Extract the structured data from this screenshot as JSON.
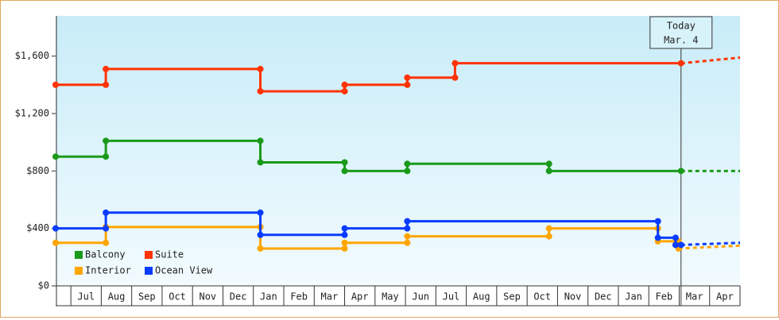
{
  "chart_data": {
    "type": "step-line",
    "xlim": [
      -0.5,
      22
    ],
    "ylim": [
      0,
      1880
    ],
    "xticks": [
      {
        "value": 0.5,
        "label": "Jul"
      },
      {
        "value": 1.5,
        "label": "Aug"
      },
      {
        "value": 2.5,
        "label": "Sep"
      },
      {
        "value": 3.5,
        "label": "Oct"
      },
      {
        "value": 4.5,
        "label": "Nov"
      },
      {
        "value": 5.5,
        "label": "Dec"
      },
      {
        "value": 6.5,
        "label": "Jan"
      },
      {
        "value": 7.5,
        "label": "Feb"
      },
      {
        "value": 8.5,
        "label": "Mar"
      },
      {
        "value": 9.5,
        "label": "Apr"
      },
      {
        "value": 10.5,
        "label": "May"
      },
      {
        "value": 11.5,
        "label": "Jun"
      },
      {
        "value": 12.5,
        "label": "Jul"
      },
      {
        "value": 13.5,
        "label": "Aug"
      },
      {
        "value": 14.5,
        "label": "Sep"
      },
      {
        "value": 15.5,
        "label": "Oct"
      },
      {
        "value": 16.5,
        "label": "Nov"
      },
      {
        "value": 17.5,
        "label": "Dec"
      },
      {
        "value": 18.5,
        "label": "Jan"
      },
      {
        "value": 19.5,
        "label": "Feb"
      },
      {
        "value": 20.5,
        "label": "Mar"
      },
      {
        "value": 21.5,
        "label": "Apr"
      }
    ],
    "yticks": [
      {
        "value": 0,
        "label": "$0"
      },
      {
        "value": 400,
        "label": "$400"
      },
      {
        "value": 800,
        "label": "$800"
      },
      {
        "value": 1200,
        "label": "$1,200"
      },
      {
        "value": 1600,
        "label": "$1,600"
      }
    ],
    "today": {
      "x": 20.06,
      "label": [
        "Today",
        "Mar. 4"
      ]
    },
    "series": [
      {
        "name": "Balcony",
        "color": "#1a9a1a",
        "x": [
          -0.5,
          1.15,
          6.23,
          9.0,
          11.06,
          15.72,
          20.06,
          22
        ],
        "values": [
          900,
          1010,
          860,
          800,
          850,
          800,
          800,
          800
        ]
      },
      {
        "name": "Suite",
        "color": "#ff3300",
        "x": [
          -0.5,
          1.15,
          6.23,
          9.0,
          11.06,
          12.63,
          20.06,
          22
        ],
        "values": [
          1400,
          1510,
          1355,
          1400,
          1450,
          1550,
          1550,
          1590
        ]
      },
      {
        "name": "Interior",
        "color": "#ffa500",
        "x": [
          -0.5,
          1.15,
          6.23,
          9.0,
          11.06,
          15.72,
          19.3,
          19.98,
          22
        ],
        "values": [
          300,
          410,
          260,
          300,
          345,
          400,
          310,
          260,
          280
        ]
      },
      {
        "name": "Ocean View",
        "color": "#0a3cff",
        "x": [
          -0.5,
          1.15,
          6.23,
          9.0,
          11.06,
          19.3,
          19.88,
          20.06,
          22
        ],
        "values": [
          400,
          510,
          355,
          400,
          450,
          335,
          285,
          285,
          300
        ]
      }
    ]
  }
}
